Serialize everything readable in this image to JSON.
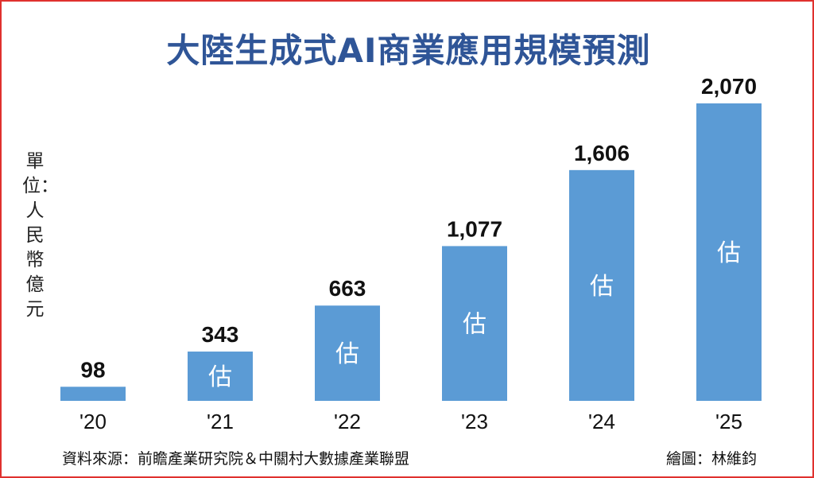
{
  "chart_data": {
    "type": "bar",
    "title": "大陸生成式AI商業應用規模預測",
    "ylabel": "單位：人民幣億元",
    "categories": [
      "'20",
      "'21",
      "'22",
      "'23",
      "'24",
      "'25"
    ],
    "values": [
      98,
      343,
      663,
      1077,
      1606,
      2070
    ],
    "value_labels": [
      "98",
      "343",
      "663",
      "1,077",
      "1,606",
      "2,070"
    ],
    "bar_notes": [
      "",
      "估",
      "估",
      "估",
      "估",
      "估"
    ],
    "ylim": [
      0,
      2070
    ],
    "grid": false,
    "bar_color": "#5b9bd5"
  },
  "footer": {
    "source": "資料來源：前瞻產業研究院＆中關村大數據產業聯盟",
    "credit": "繪圖：林維鈞"
  },
  "colors": {
    "title": "#2f5597",
    "border": "#e0312e",
    "bar": "#5b9bd5"
  }
}
